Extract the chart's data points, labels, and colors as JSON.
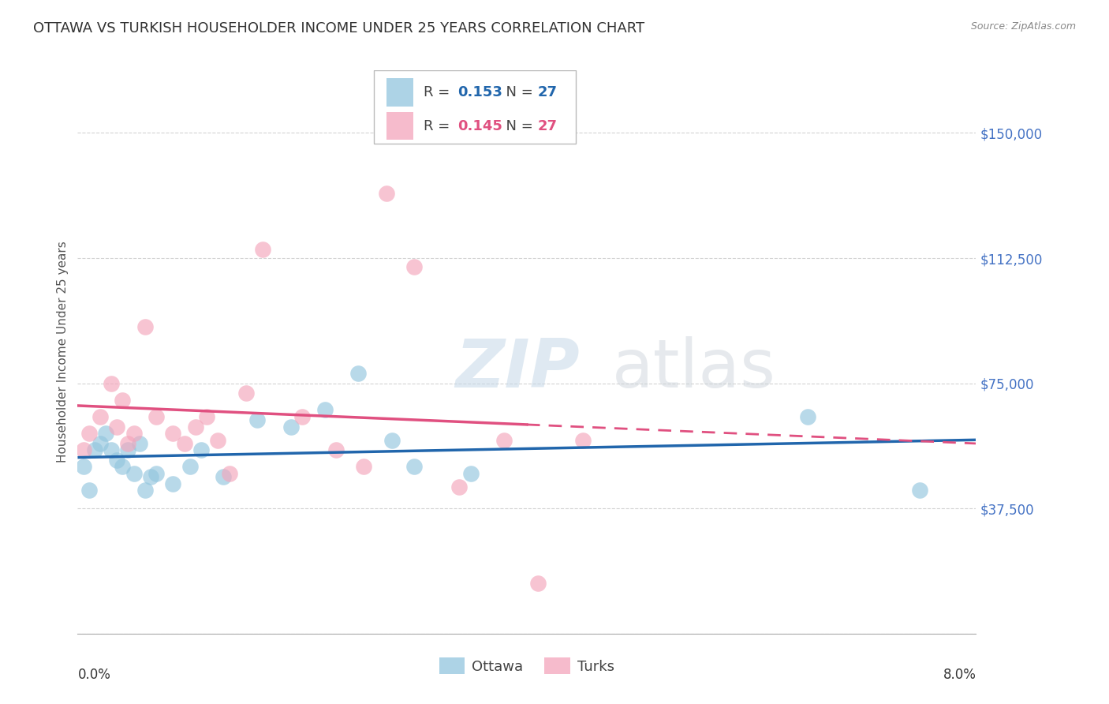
{
  "title": "OTTAWA VS TURKISH HOUSEHOLDER INCOME UNDER 25 YEARS CORRELATION CHART",
  "source": "Source: ZipAtlas.com",
  "ylabel": "Householder Income Under 25 years",
  "ytick_color": "#4472c4",
  "xlim": [
    0.0,
    8.0
  ],
  "ylim": [
    0,
    168750
  ],
  "watermark_zip": "ZIP",
  "watermark_atlas": "atlas",
  "ottawa_color": "#92c5de",
  "turks_color": "#f4a5bb",
  "ottawa_line_color": "#2166ac",
  "turks_line_color": "#e05080",
  "ottawa_R": 0.153,
  "ottawa_N": 27,
  "turks_R": 0.145,
  "turks_N": 27,
  "ottawa_x": [
    0.05,
    0.1,
    0.15,
    0.2,
    0.25,
    0.3,
    0.35,
    0.4,
    0.45,
    0.5,
    0.55,
    0.6,
    0.65,
    0.7,
    0.85,
    1.0,
    1.1,
    1.3,
    1.6,
    1.9,
    2.2,
    2.5,
    2.8,
    3.0,
    3.5,
    6.5,
    7.5
  ],
  "ottawa_y": [
    50000,
    43000,
    55000,
    57000,
    60000,
    55000,
    52000,
    50000,
    55000,
    48000,
    57000,
    43000,
    47000,
    48000,
    45000,
    50000,
    55000,
    47000,
    64000,
    62000,
    67000,
    78000,
    58000,
    50000,
    48000,
    65000,
    43000
  ],
  "turks_x": [
    0.05,
    0.1,
    0.2,
    0.3,
    0.35,
    0.4,
    0.45,
    0.5,
    0.6,
    0.7,
    0.85,
    0.95,
    1.05,
    1.15,
    1.25,
    1.35,
    1.5,
    1.65,
    2.0,
    2.3,
    2.55,
    2.75,
    3.0,
    3.4,
    3.8,
    4.1,
    4.5
  ],
  "turks_y": [
    55000,
    60000,
    65000,
    75000,
    62000,
    70000,
    57000,
    60000,
    92000,
    65000,
    60000,
    57000,
    62000,
    65000,
    58000,
    48000,
    72000,
    115000,
    65000,
    55000,
    50000,
    132000,
    110000,
    44000,
    58000,
    15000,
    58000
  ],
  "background_color": "#ffffff",
  "grid_color": "#c8c8c8",
  "title_fontsize": 13,
  "axis_label_fontsize": 11,
  "tick_fontsize": 12,
  "legend_fontsize": 13
}
